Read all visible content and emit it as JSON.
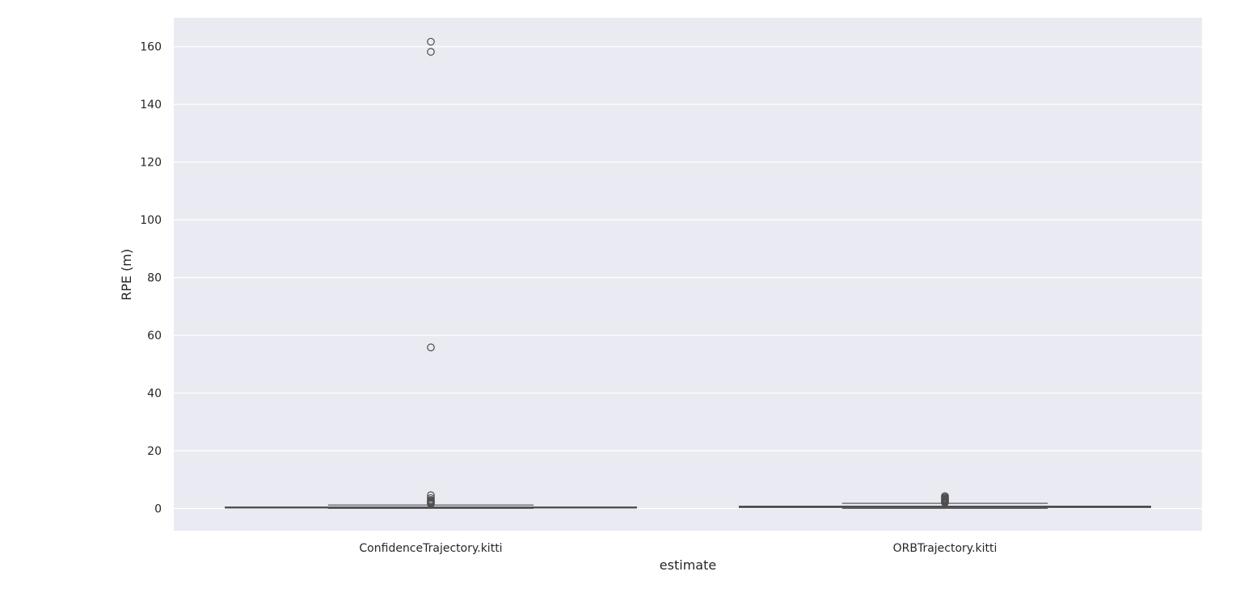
{
  "chart_data": {
    "type": "box",
    "xlabel": "estimate",
    "ylabel": "RPE (m)",
    "categories": [
      "ConfidenceTrajectory.kitti",
      "ORBTrajectory.kitti"
    ],
    "ylim": [
      -7.7,
      170
    ],
    "yticks": [
      0,
      20,
      40,
      60,
      80,
      100,
      120,
      140,
      160
    ],
    "grid": true,
    "background": "#eaeaf2",
    "grid_color": "#ffffff",
    "box_color": "#4c4c4c",
    "boxes": [
      {
        "category": "ConfidenceTrajectory.kitti",
        "whisker_low": 0.05,
        "q1": 0.2,
        "median": 0.35,
        "q3": 0.5,
        "whisker_high": 1.2,
        "outliers": [
          161.7,
          158.2,
          55.8,
          4.6,
          3.6,
          3.0,
          2.6,
          2.2,
          1.9,
          1.6
        ]
      },
      {
        "category": "ORBTrajectory.kitti",
        "whisker_low": 0.05,
        "q1": 0.35,
        "median": 0.55,
        "q3": 0.8,
        "whisker_high": 1.8,
        "outliers": [
          4.3,
          3.9,
          3.5,
          3.2,
          2.9,
          2.6,
          2.3,
          2.0
        ]
      }
    ]
  }
}
